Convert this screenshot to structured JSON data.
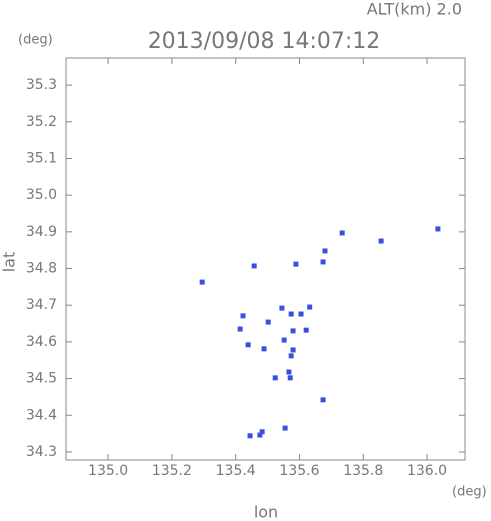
{
  "chart_data": {
    "type": "scatter",
    "title": "2013/09/08 14:07:12",
    "subtitle": "ALT(km)  2.0",
    "y_unit": "(deg)",
    "x_unit": "(deg)",
    "xlabel": "lon",
    "ylabel": "lat",
    "color": "#3a4ee0",
    "x": [
      136.034,
      135.856,
      135.734,
      135.68,
      135.674,
      135.589,
      135.458,
      135.295,
      135.545,
      135.632,
      135.574,
      135.605,
      135.423,
      135.502,
      135.414,
      135.58,
      135.621,
      135.552,
      135.439,
      135.489,
      135.58,
      135.574,
      135.567,
      135.524,
      135.571,
      135.674,
      135.555,
      135.483,
      135.445,
      135.476
    ],
    "values": [
      34.908,
      34.875,
      34.897,
      34.848,
      34.818,
      34.812,
      34.807,
      34.763,
      34.692,
      34.695,
      34.676,
      34.676,
      34.671,
      34.654,
      34.635,
      34.63,
      34.632,
      34.605,
      34.592,
      34.581,
      34.578,
      34.562,
      34.518,
      34.502,
      34.502,
      34.442,
      34.365,
      34.355,
      34.344,
      34.346
    ],
    "xlim": [
      134.868,
      136.119
    ],
    "ylim": [
      34.278,
      35.374
    ],
    "xticks": [
      {
        "value": 135.0,
        "label": "135.0"
      },
      135.2,
      135.4,
      135.6,
      135.8,
      {
        "value": 136.0,
        "label": "136.0"
      }
    ],
    "yticks": [
      34.3,
      34.4,
      34.5,
      34.6,
      34.7,
      34.8,
      34.9,
      {
        "value": 35.0,
        "label": "35.0"
      },
      35.1,
      35.2,
      35.3
    ]
  }
}
